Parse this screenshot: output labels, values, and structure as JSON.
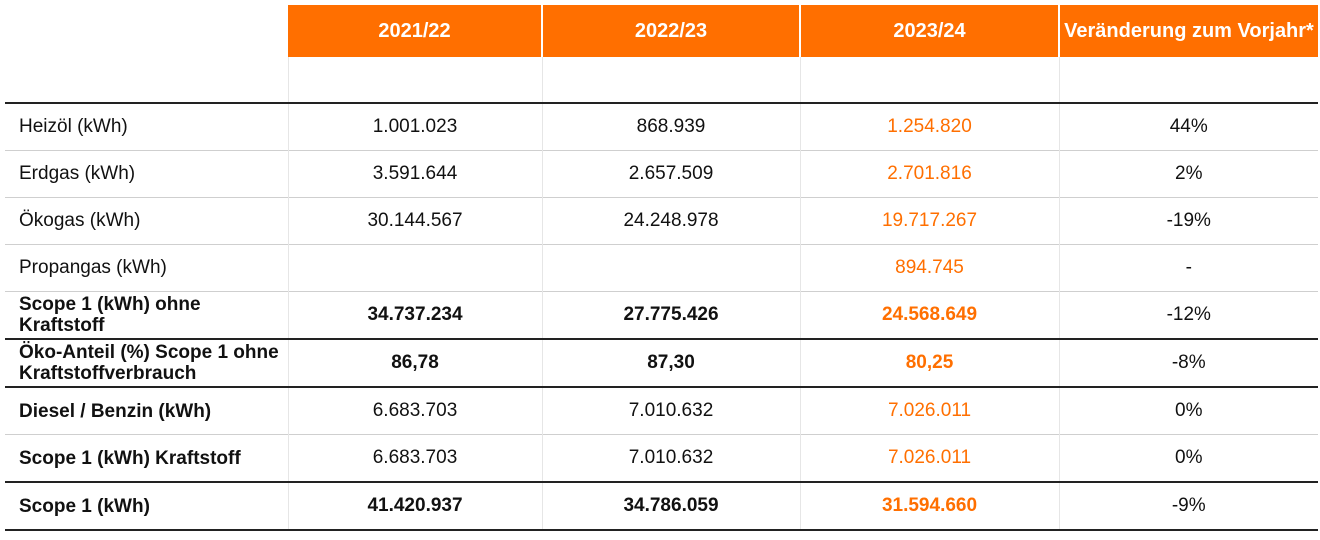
{
  "table": {
    "headers": [
      "",
      "2021/22",
      "2022/23",
      "2023/24",
      "Veränderung zum Vorjahr*"
    ],
    "rows": [
      {
        "label": "Heizöl (kWh)",
        "v2021": "1.001.023",
        "v2022": "868.939",
        "v2023": "1.254.820",
        "change": "44%"
      },
      {
        "label": "Erdgas (kWh)",
        "v2021": "3.591.644",
        "v2022": "2.657.509",
        "v2023": "2.701.816",
        "change": "2%"
      },
      {
        "label": "Ökogas (kWh)",
        "v2021": "30.144.567",
        "v2022": "24.248.978",
        "v2023": "19.717.267",
        "change": "-19%"
      },
      {
        "label": "Propangas (kWh)",
        "v2021": "",
        "v2022": "",
        "v2023": "894.745",
        "change": "-"
      },
      {
        "label": "Scope 1 (kWh) ohne Kraftstoff",
        "v2021": "34.737.234",
        "v2022": "27.775.426",
        "v2023": "24.568.649",
        "change": "-12%"
      },
      {
        "label": "Öko-Anteil (%) Scope 1 ohne Kraftstoffverbrauch",
        "v2021": "86,78",
        "v2022": "87,30",
        "v2023": "80,25",
        "change": "-8%"
      },
      {
        "label": "Diesel / Benzin (kWh)",
        "v2021": "6.683.703",
        "v2022": "7.010.632",
        "v2023": "7.026.011",
        "change": "0%"
      },
      {
        "label": "Scope 1 (kWh) Kraftstoff",
        "v2021": "6.683.703",
        "v2022": "7.010.632",
        "v2023": "7.026.011",
        "change": "0%"
      },
      {
        "label": "Scope 1 (kWh)",
        "v2021": "41.420.937",
        "v2022": "34.786.059",
        "v2023": "31.594.660",
        "change": "-9%"
      }
    ]
  },
  "colors": {
    "accent": "#ff6f00",
    "text": "#111111",
    "rule": "#222222"
  }
}
